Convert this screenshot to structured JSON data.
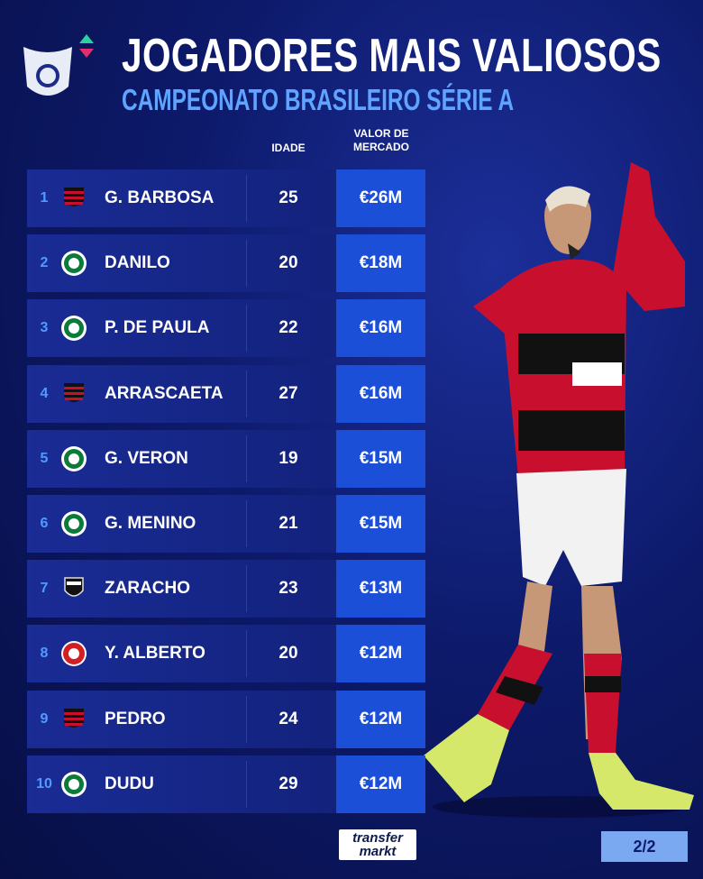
{
  "header": {
    "title": "JOGADORES MAIS VALIOSOS",
    "subtitle": "CAMPEONATO BRASILEIRO SÉRIE A"
  },
  "table": {
    "columns": [
      "IDADE",
      "VALOR DE MERCADO"
    ],
    "rows": [
      [
        1,
        "G. BARBOSA",
        25,
        "€26M"
      ],
      [
        2,
        "DANILO",
        20,
        "€18M"
      ],
      [
        3,
        "P. DE PAULA",
        22,
        "€16M"
      ],
      [
        4,
        "ARRASCAETA",
        27,
        "€16M"
      ],
      [
        5,
        "G. VERON",
        19,
        "€15M"
      ],
      [
        6,
        "G. MENINO",
        21,
        "€15M"
      ],
      [
        7,
        "ZARACHO",
        23,
        "€13M"
      ],
      [
        8,
        "Y. ALBERTO",
        20,
        "€12M"
      ],
      [
        9,
        "PEDRO",
        24,
        "€12M"
      ],
      [
        10,
        "DUDU",
        29,
        "€12M"
      ]
    ]
  },
  "footer": {
    "brand": [
      "transfer",
      "markt"
    ],
    "page": "2/2"
  }
}
